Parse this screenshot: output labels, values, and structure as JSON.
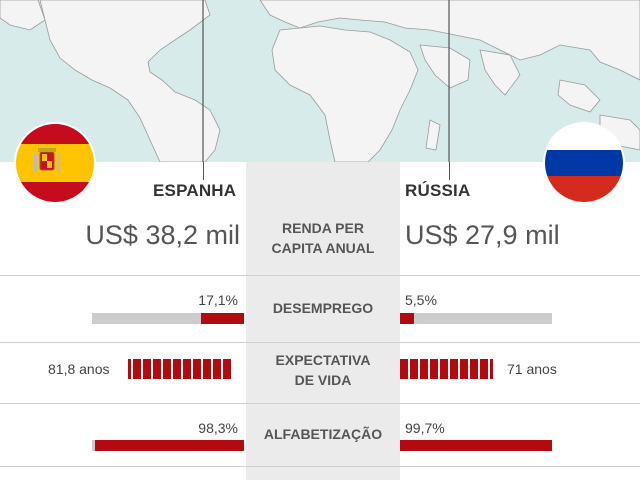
{
  "spain": {
    "name": "ESPANHA",
    "income": "US$ 38,2 mil",
    "unemployment": "17,1%",
    "life_expectancy": "81,8 anos",
    "literacy": "98,3%"
  },
  "russia": {
    "name": "RÚSSIA",
    "income": "US$ 27,9 mil",
    "unemployment": "5,5%",
    "life_expectancy": "71 anos",
    "literacy": "99,7%"
  },
  "labels": {
    "income_l1": "RENDA PER",
    "income_l2": "CAPITA ANUAL",
    "unemployment": "DESEMPREGO",
    "life_l1": "EXPECTATIVA",
    "life_l2": "DE VIDA",
    "literacy": "ALFABETIZAÇÃO"
  },
  "metrics": {
    "unemployment_spain": 17.1,
    "unemployment_russia": 5.5,
    "literacy_spain": 98.3,
    "literacy_russia": 99.7,
    "life_spain": 81.8,
    "life_russia": 71
  },
  "colors": {
    "accent": "#b10a0f",
    "track": "#cccccc",
    "map_sea": "#d6ebea",
    "land": "#f2f2f2"
  }
}
